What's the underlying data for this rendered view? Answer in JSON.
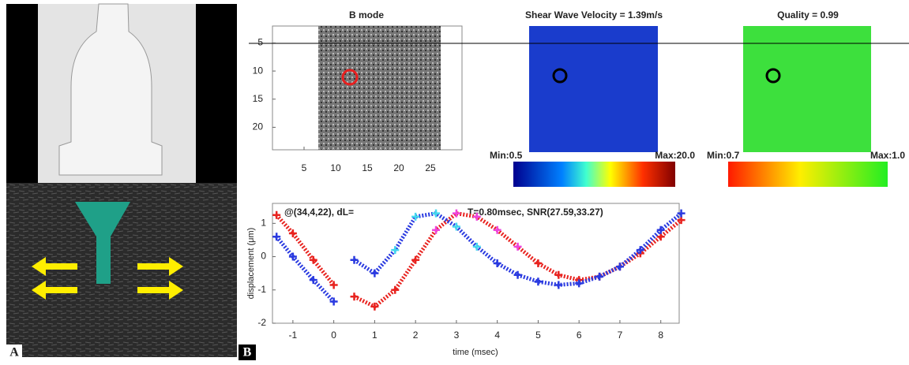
{
  "panel_a": {
    "label": "A"
  },
  "panel_b": {
    "label": "B",
    "bmode": {
      "title": "B mode",
      "xlim": [
        0,
        30
      ],
      "ylim": [
        2,
        24
      ],
      "xticks": [
        5,
        10,
        15,
        20,
        25
      ],
      "yticks": [
        5,
        10,
        15,
        20
      ]
    },
    "swv": {
      "title": "Shear Wave Velocity = 1.39m/s",
      "min_label": "Min:0.5",
      "max_label": "Max:20.0"
    },
    "quality": {
      "title": "Quality = 0.99",
      "min_label": "Min:0.7",
      "max_label": "Max:1.0"
    }
  },
  "chart_data": {
    "type": "line",
    "annotation_left": "@(34,4,22), dL=",
    "annotation_right": "T=0.80msec, SNR(27.59,33.27)",
    "x_label": "time (msec)",
    "y_label": "displacement (μm)",
    "x": [
      -1.4,
      -1,
      -0.5,
      0,
      0.25,
      0.5,
      1,
      1.5,
      2,
      2.5,
      3,
      3.5,
      4,
      4.5,
      5,
      5.5,
      6,
      6.5,
      7,
      7.5,
      8,
      8.5
    ],
    "series": [
      {
        "color": "#e8231f",
        "highlight_color": "#ee44dd",
        "highlight_xlim": [
          2.5,
          4.6
        ],
        "values": [
          1.25,
          0.7,
          -0.1,
          -0.85,
          null,
          -1.2,
          -1.5,
          -1.0,
          -0.1,
          0.8,
          1.3,
          1.2,
          0.8,
          0.3,
          -0.2,
          -0.55,
          -0.7,
          -0.6,
          -0.3,
          0.1,
          0.6,
          1.1
        ]
      },
      {
        "color": "#2a3ae0",
        "highlight_color": "#44d8ee",
        "highlight_xlim": [
          1.5,
          3.7
        ],
        "values": [
          0.6,
          0.0,
          -0.7,
          -1.35,
          null,
          -0.1,
          -0.5,
          0.2,
          1.2,
          1.3,
          0.9,
          0.3,
          -0.2,
          -0.55,
          -0.75,
          -0.85,
          -0.8,
          -0.6,
          -0.3,
          0.2,
          0.8,
          1.3
        ]
      }
    ],
    "xlim": [
      -1.5,
      8.45
    ],
    "ylim": [
      -2,
      1.6
    ],
    "xticks": [
      -1,
      0,
      1,
      2,
      3,
      4,
      5,
      6,
      7,
      8
    ],
    "yticks": [
      -2,
      -1,
      0,
      1
    ]
  }
}
